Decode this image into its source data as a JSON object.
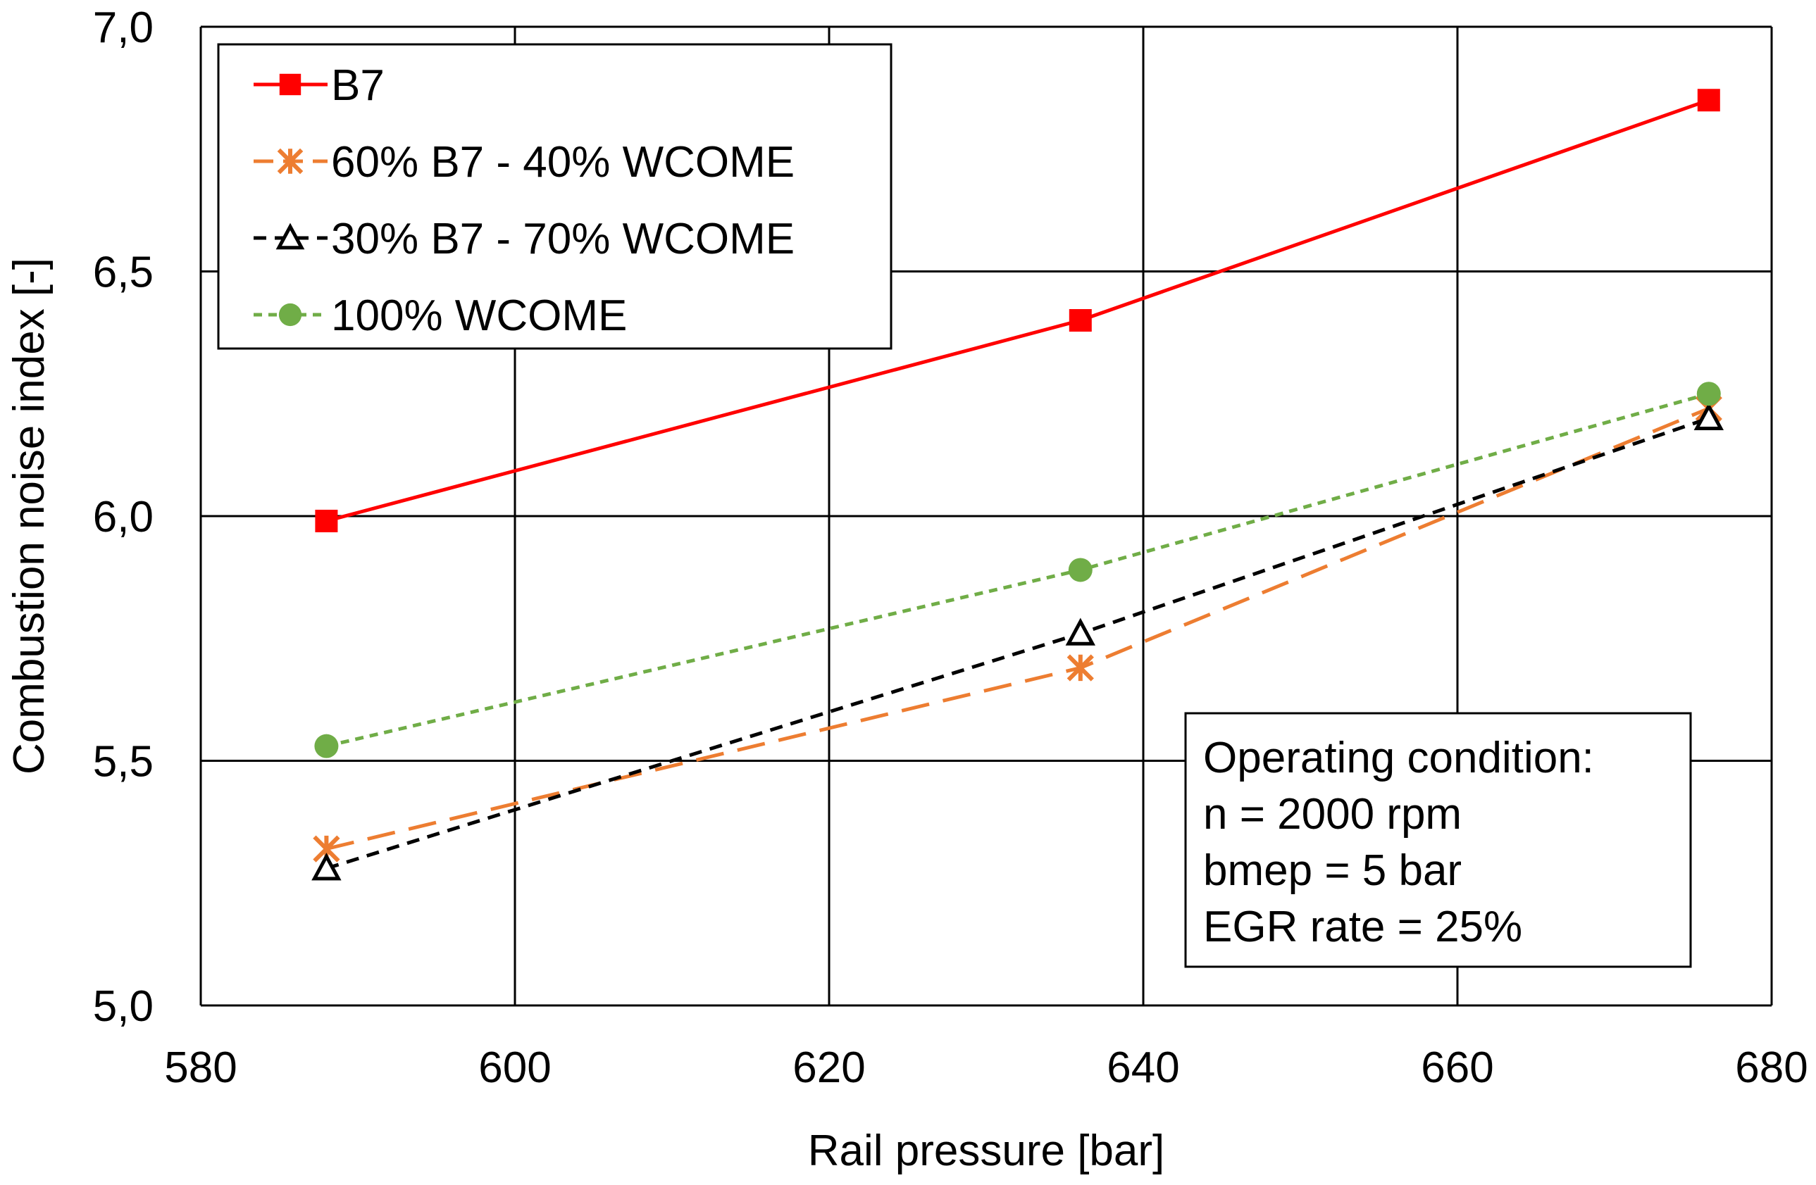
{
  "chart_data": {
    "type": "line",
    "title": "",
    "xlabel": "Rail pressure [bar]",
    "ylabel": "Combustion noise index [-]",
    "xlim": [
      580,
      680
    ],
    "ylim": [
      5.0,
      7.0
    ],
    "x_ticks": [
      580,
      600,
      620,
      640,
      660,
      680
    ],
    "y_ticks": [
      5.0,
      5.5,
      6.0,
      6.5,
      7.0
    ],
    "y_tick_labels": [
      "5,0",
      "5,5",
      "6,0",
      "6,5",
      "7,0"
    ],
    "grid": true,
    "legend_position": "top-left",
    "series": [
      {
        "name": "B7",
        "color": "#ff0000",
        "marker": "square",
        "line": "solid",
        "x": [
          588,
          636,
          676
        ],
        "y": [
          5.99,
          6.4,
          6.85
        ]
      },
      {
        "name": "60% B7 - 40% WCOME",
        "color": "#ed7d31",
        "marker": "asterisk",
        "line": "long-dash",
        "x": [
          588,
          636,
          676
        ],
        "y": [
          5.32,
          5.69,
          6.22
        ]
      },
      {
        "name": "30% B7 - 70% WCOME",
        "color": "#000000",
        "marker": "triangle",
        "line": "dash",
        "x": [
          588,
          636,
          676
        ],
        "y": [
          5.28,
          5.76,
          6.2
        ]
      },
      {
        "name": "100% WCOME",
        "color": "#70ad47",
        "marker": "circle",
        "line": "short-dash",
        "x": [
          588,
          636,
          676
        ],
        "y": [
          5.53,
          5.89,
          6.25
        ]
      }
    ],
    "annotation": {
      "lines": [
        "Operating condition:",
        "n = 2000 rpm",
        "bmep = 5 bar",
        "EGR rate = 25%"
      ]
    }
  }
}
